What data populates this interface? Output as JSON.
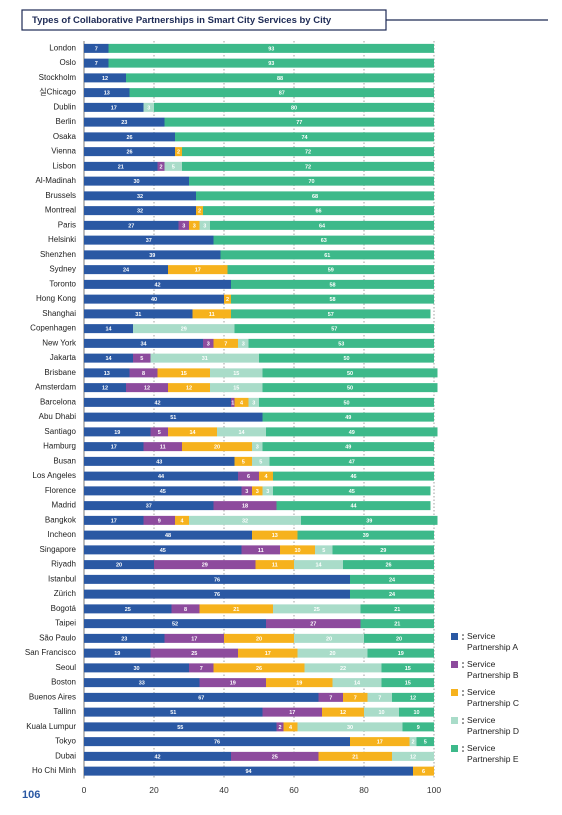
{
  "chart_data": {
    "type": "stacked_bar_horizontal",
    "title": "Types of Collaborative Partnerships in Smart City Services by City",
    "categories": [
      "London",
      "Oslo",
      "Stockholm",
      "실Chicago",
      "Dublin",
      "Berlin",
      "Osaka",
      "Vienna",
      "Lisbon",
      "Al-Madinah",
      "Brussels",
      "Montreal",
      "Paris",
      "Helsinki",
      "Shenzhen",
      "Sydney",
      "Toronto",
      "Hong Kong",
      "Shanghai",
      "Copenhagen",
      "New York",
      "Jakarta",
      "Brisbane",
      "Amsterdam",
      "Barcelona",
      "Abu Dhabi",
      "Santiago",
      "Hamburg",
      "Busan",
      "Los Angeles",
      "Florence",
      "Madrid",
      "Bangkok",
      "Incheon",
      "Singapore",
      "Riyadh",
      "Istanbul",
      "Zürich",
      "Bogotá",
      "Taipei",
      "São Paulo",
      "San Francisco",
      "Seoul",
      "Boston",
      "Buenos Aires",
      "Tallinn",
      "Kuala Lumpur",
      "Tokyo",
      "Dubai",
      "Ho Chi Minh"
    ],
    "series": [
      {
        "name": "Service Partnership A",
        "color": "#2a58a3",
        "values": [
          7,
          7,
          12,
          13,
          17,
          23,
          26,
          26,
          21,
          30,
          32,
          32,
          27,
          37,
          39,
          24,
          42,
          40,
          31,
          14,
          34,
          14,
          13,
          12,
          42,
          51,
          19,
          17,
          43,
          44,
          45,
          37,
          17,
          48,
          45,
          20,
          76,
          76,
          25,
          52,
          23,
          19,
          30,
          33,
          67,
          51,
          55,
          76,
          42,
          94
        ]
      },
      {
        "name": "Service Partnership B",
        "color": "#8d4b9d",
        "values": [
          null,
          null,
          null,
          null,
          null,
          null,
          null,
          null,
          2,
          null,
          null,
          null,
          3,
          null,
          null,
          null,
          null,
          null,
          null,
          null,
          3,
          5,
          8,
          12,
          1,
          null,
          5,
          11,
          null,
          6,
          3,
          18,
          9,
          null,
          11,
          29,
          null,
          null,
          8,
          27,
          17,
          25,
          7,
          19,
          7,
          17,
          2,
          null,
          25,
          null
        ]
      },
      {
        "name": "Service Partnership C",
        "color": "#f6b21d",
        "values": [
          null,
          null,
          null,
          null,
          null,
          null,
          null,
          2,
          null,
          null,
          null,
          2,
          3,
          null,
          null,
          17,
          null,
          2,
          11,
          null,
          7,
          null,
          15,
          12,
          4,
          null,
          14,
          20,
          5,
          4,
          3,
          null,
          4,
          13,
          10,
          11,
          null,
          null,
          21,
          null,
          20,
          17,
          26,
          19,
          7,
          12,
          4,
          17,
          21,
          6
        ]
      },
      {
        "name": "Service Partnership D",
        "color": "#a9dcc9",
        "values": [
          null,
          null,
          null,
          null,
          3,
          null,
          null,
          null,
          5,
          null,
          null,
          null,
          3,
          null,
          null,
          null,
          null,
          null,
          null,
          29,
          3,
          31,
          15,
          15,
          3,
          null,
          14,
          3,
          5,
          null,
          3,
          null,
          32,
          null,
          5,
          14,
          null,
          null,
          25,
          null,
          20,
          20,
          22,
          14,
          7,
          10,
          30,
          2,
          12,
          null
        ]
      },
      {
        "name": "Service Partnership E",
        "color": "#3db98a",
        "values": [
          93,
          93,
          88,
          87,
          80,
          77,
          74,
          72,
          72,
          70,
          68,
          66,
          64,
          63,
          61,
          59,
          58,
          58,
          57,
          57,
          53,
          50,
          50,
          50,
          50,
          49,
          49,
          49,
          47,
          46,
          45,
          44,
          39,
          39,
          29,
          26,
          24,
          24,
          21,
          21,
          20,
          19,
          15,
          15,
          12,
          10,
          9,
          5,
          null,
          null
        ]
      }
    ],
    "xlim": [
      0,
      100
    ],
    "xticks": [
      0,
      20,
      40,
      60,
      80,
      100
    ],
    "grid": true,
    "legend": "bottom-right"
  },
  "page_number": "106"
}
